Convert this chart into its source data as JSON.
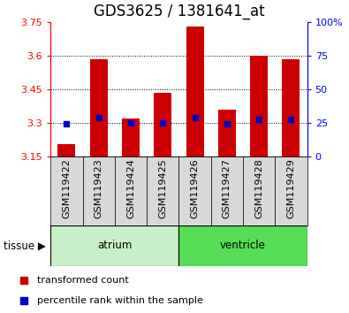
{
  "title": "GDS3625 / 1381641_at",
  "samples": [
    "GSM119422",
    "GSM119423",
    "GSM119424",
    "GSM119425",
    "GSM119426",
    "GSM119427",
    "GSM119428",
    "GSM119429"
  ],
  "bar_bottom": 3.15,
  "bar_tops": [
    3.205,
    3.585,
    3.32,
    3.435,
    3.73,
    3.36,
    3.6,
    3.585
  ],
  "blue_vals": [
    3.295,
    3.325,
    3.3,
    3.3,
    3.325,
    3.295,
    3.315,
    3.315
  ],
  "ylim": [
    3.15,
    3.75
  ],
  "yticks_left": [
    3.15,
    3.3,
    3.45,
    3.6,
    3.75
  ],
  "ytick_labels_left": [
    "3.15",
    "3.3",
    "3.45",
    "3.6",
    "3.75"
  ],
  "ytick_labels_right": [
    "0",
    "25",
    "50",
    "75",
    "100%"
  ],
  "grid_vals": [
    3.3,
    3.45,
    3.6
  ],
  "bar_color": "#cc0000",
  "blue_color": "#0000cc",
  "atrium_label": "atrium",
  "ventricle_label": "ventricle",
  "tissue_label": "tissue",
  "legend_red_label": "transformed count",
  "legend_blue_label": "percentile rank within the sample",
  "bar_width": 0.55,
  "sample_bg_color": "#d8d8d8",
  "atrium_color": "#c8f0c8",
  "ventricle_color": "#55dd55",
  "title_fontsize": 12,
  "tick_fontsize": 8,
  "label_fontsize": 8.5,
  "legend_fontsize": 8
}
